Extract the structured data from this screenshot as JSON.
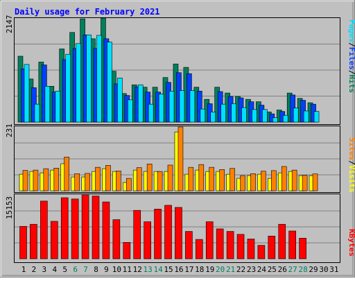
{
  "title": "Daily usage for February 2021",
  "colors": {
    "frame_bg": "#c0c0c0",
    "plot_bg": "#c0c0c0",
    "title_text": "#0000ff",
    "hits": "#00805c",
    "files": "#0040ff",
    "pages": "#00e0ff",
    "visits": "#ffff00",
    "sites": "#ff8000",
    "kbytes": "#ff0000",
    "weekday_label": "#000000",
    "weekend_label": "#00805c",
    "gridline": "#808080"
  },
  "days": [
    "1",
    "2",
    "3",
    "4",
    "5",
    "6",
    "7",
    "8",
    "9",
    "10",
    "11",
    "12",
    "13",
    "14",
    "15",
    "16",
    "17",
    "18",
    "19",
    "20",
    "21",
    "22",
    "23",
    "24",
    "25",
    "26",
    "27",
    "28",
    "29",
    "30",
    "31"
  ],
  "weekend_days": [
    "6",
    "7",
    "13",
    "14",
    "20",
    "21",
    "27",
    "28"
  ],
  "chart_data": [
    {
      "type": "bar",
      "name": "hits-files-pages",
      "max_label": "2147",
      "ylim": [
        0,
        2147
      ],
      "grid": true,
      "legend": [
        "Pages",
        "/",
        "Files",
        "/",
        "Hits"
      ],
      "categories": [
        "1",
        "2",
        "3",
        "4",
        "5",
        "6",
        "7",
        "8",
        "9",
        "10",
        "11",
        "12",
        "13",
        "14",
        "15",
        "16",
        "17",
        "18",
        "19",
        "20",
        "21",
        "22",
        "23",
        "24",
        "25",
        "26",
        "27",
        "28",
        "29",
        "30",
        "31"
      ],
      "series": [
        {
          "name": "Hits",
          "values": [
            1360,
            890,
            1240,
            740,
            1510,
            1850,
            2130,
            1720,
            2147,
            1050,
            590,
            770,
            720,
            720,
            920,
            1200,
            1130,
            720,
            470,
            720,
            600,
            530,
            470,
            420,
            210,
            250,
            600,
            490,
            400,
            0,
            0
          ]
        },
        {
          "name": "Files",
          "values": [
            1100,
            710,
            1180,
            620,
            1290,
            1520,
            1800,
            1520,
            1720,
            790,
            550,
            730,
            620,
            620,
            820,
            1020,
            1000,
            640,
            380,
            630,
            530,
            500,
            420,
            350,
            170,
            220,
            560,
            450,
            370,
            0,
            0
          ]
        },
        {
          "name": "Pages",
          "values": [
            1190,
            370,
            740,
            640,
            1400,
            1620,
            1800,
            1790,
            1650,
            910,
            460,
            770,
            370,
            580,
            640,
            650,
            650,
            270,
            210,
            370,
            380,
            300,
            260,
            260,
            90,
            140,
            290,
            230,
            220,
            0,
            0
          ]
        }
      ]
    },
    {
      "type": "bar",
      "name": "visits-sites",
      "max_label": "231",
      "ylim": [
        0,
        231
      ],
      "grid": true,
      "legend": [
        "Sites",
        "/",
        "Visits"
      ],
      "categories": [
        "1",
        "2",
        "3",
        "4",
        "5",
        "6",
        "7",
        "8",
        "9",
        "10",
        "11",
        "12",
        "13",
        "14",
        "15",
        "16",
        "17",
        "18",
        "19",
        "20",
        "21",
        "22",
        "23",
        "24",
        "25",
        "26",
        "27",
        "28",
        "29",
        "30",
        "31"
      ],
      "series": [
        {
          "name": "Visits",
          "values": [
            60,
            70,
            65,
            75,
            98,
            50,
            50,
            70,
            80,
            70,
            30,
            75,
            70,
            70,
            70,
            213,
            60,
            75,
            70,
            70,
            60,
            45,
            55,
            60,
            45,
            65,
            70,
            55,
            55,
            0,
            0
          ]
        },
        {
          "name": "Sites",
          "values": [
            74,
            75,
            80,
            82,
            122,
            62,
            63,
            85,
            92,
            72,
            45,
            84,
            97,
            70,
            93,
            231,
            85,
            95,
            85,
            77,
            81,
            55,
            62,
            71,
            73,
            88,
            75,
            56,
            61,
            0,
            0
          ]
        }
      ]
    },
    {
      "type": "bar",
      "name": "kbytes",
      "max_label": "15153",
      "ylim": [
        0,
        15153
      ],
      "grid": true,
      "legend": [
        "KBytes"
      ],
      "categories": [
        "1",
        "2",
        "3",
        "4",
        "5",
        "6",
        "7",
        "8",
        "9",
        "10",
        "11",
        "12",
        "13",
        "14",
        "15",
        "16",
        "17",
        "18",
        "19",
        "20",
        "21",
        "22",
        "23",
        "24",
        "25",
        "26",
        "27",
        "28",
        "29",
        "30",
        "31"
      ],
      "series": [
        {
          "name": "KBytes",
          "values": [
            7700,
            8200,
            13700,
            8900,
            14500,
            14200,
            15153,
            14900,
            13500,
            9300,
            3900,
            11500,
            8800,
            11800,
            12700,
            12200,
            6500,
            4600,
            8800,
            7100,
            6500,
            5800,
            4700,
            3200,
            5400,
            8200,
            6600,
            4900,
            0,
            0,
            0
          ]
        }
      ]
    }
  ]
}
